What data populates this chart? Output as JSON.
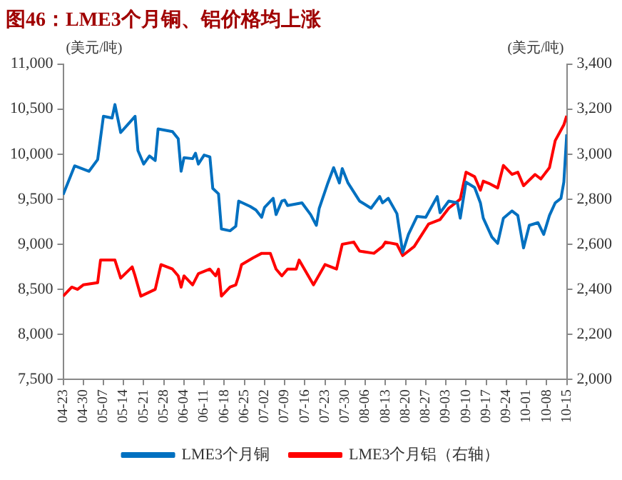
{
  "chart_data": {
    "type": "line",
    "title": "图46：LME3个月铜、铝价格均上涨",
    "ylabel": "(美元/吨)",
    "y2label": "(美元/吨)",
    "xlim": [
      "--04-23",
      "--10-15"
    ],
    "xticks": [
      {
        "value": "--04-23",
        "label": "04-23"
      },
      {
        "value": "--04-30",
        "label": "04-30"
      },
      {
        "value": "--05-07",
        "label": "05-07"
      },
      {
        "value": "--05-14",
        "label": "05-14"
      },
      {
        "value": "--05-21",
        "label": "05-21"
      },
      {
        "value": "--05-28",
        "label": "05-28"
      },
      {
        "value": "--06-04",
        "label": "06-04"
      },
      {
        "value": "--06-11",
        "label": "06-11"
      },
      {
        "value": "--06-18",
        "label": "06-18"
      },
      {
        "value": "--06-25",
        "label": "06-25"
      },
      {
        "value": "--07-02",
        "label": "07-02"
      },
      {
        "value": "--07-09",
        "label": "07-09"
      },
      {
        "value": "--07-16",
        "label": "07-16"
      },
      {
        "value": "--07-23",
        "label": "07-23"
      },
      {
        "value": "--07-30",
        "label": "07-30"
      },
      {
        "value": "--08-06",
        "label": "08-06"
      },
      {
        "value": "--08-13",
        "label": "08-13"
      },
      {
        "value": "--08-20",
        "label": "08-20"
      },
      {
        "value": "--08-27",
        "label": "08-27"
      },
      {
        "value": "--09-03",
        "label": "09-03"
      },
      {
        "value": "--09-10",
        "label": "09-10"
      },
      {
        "value": "--09-17",
        "label": "09-17"
      },
      {
        "value": "--09-24",
        "label": "09-24"
      },
      {
        "value": "--10-01",
        "label": "10-01"
      },
      {
        "value": "--10-08",
        "label": "10-08"
      },
      {
        "value": "--10-15",
        "label": "10-15"
      }
    ],
    "ylim": [
      7500,
      11000
    ],
    "yticks": [
      {
        "value": 7500,
        "label": "7,500"
      },
      {
        "value": 8000,
        "label": "8,000"
      },
      {
        "value": 8500,
        "label": "8,500"
      },
      {
        "value": 9000,
        "label": "9,000"
      },
      {
        "value": 9500,
        "label": "9,500"
      },
      {
        "value": 10000,
        "label": "10,000"
      },
      {
        "value": 10500,
        "label": "10,500"
      },
      {
        "value": 11000,
        "label": "11,000"
      }
    ],
    "y2lim": [
      2000,
      3400
    ],
    "y2ticks": [
      {
        "value": 2000,
        "label": "2,000"
      },
      {
        "value": 2200,
        "label": "2,200"
      },
      {
        "value": 2400,
        "label": "2,400"
      },
      {
        "value": 2600,
        "label": "2,600"
      },
      {
        "value": 2800,
        "label": "2,800"
      },
      {
        "value": 3000,
        "label": "3,000"
      },
      {
        "value": 3200,
        "label": "3,200"
      },
      {
        "value": 3400,
        "label": "3,400"
      }
    ],
    "grid": false,
    "legend": "bottom",
    "marker": "none",
    "line_style": "solid",
    "series": [
      {
        "name": "LME3个月铜",
        "color": "#0070c0",
        "x": [
          "--04-23",
          "--04-27",
          "--05-02",
          "--05-05",
          "--05-07",
          "--05-10",
          "--05-11",
          "--05-13",
          "--05-18",
          "--05-19",
          "--05-21",
          "--05-23",
          "--05-25",
          "--05-26",
          "--05-31",
          "--06-02",
          "--06-03",
          "--06-04",
          "--06-07",
          "--06-08",
          "--06-09",
          "--06-11",
          "--06-13",
          "--06-14",
          "--06-16",
          "--06-17",
          "--06-20",
          "--06-22",
          "--06-23",
          "--06-27",
          "--06-29",
          "--07-01",
          "--07-02",
          "--07-05",
          "--07-06",
          "--07-08",
          "--07-09",
          "--07-10",
          "--07-15",
          "--07-18",
          "--07-20",
          "--07-21",
          "--07-24",
          "--07-26",
          "--07-28",
          "--07-29",
          "--07-31",
          "--08-04",
          "--08-08",
          "--08-11",
          "--08-12",
          "--08-14",
          "--08-17",
          "--08-19",
          "--08-21",
          "--08-24",
          "--08-27",
          "--08-31",
          "--09-01",
          "--09-04",
          "--09-07",
          "--09-08",
          "--09-10",
          "--09-13",
          "--09-15",
          "--09-16",
          "--09-19",
          "--09-21",
          "--09-23",
          "--09-26",
          "--09-28",
          "--09-29",
          "--09-30",
          "--10-02",
          "--10-05",
          "--10-07",
          "--10-09",
          "--10-11",
          "--10-13",
          "--10-14",
          "--10-15"
        ],
        "values": [
          9550,
          9870,
          9810,
          9940,
          10420,
          10400,
          10550,
          10240,
          10420,
          10040,
          9890,
          9980,
          9930,
          10280,
          10250,
          10170,
          9810,
          9960,
          9950,
          10010,
          9890,
          9990,
          9970,
          9620,
          9560,
          9170,
          9150,
          9200,
          9480,
          9420,
          9380,
          9300,
          9410,
          9510,
          9330,
          9480,
          9490,
          9430,
          9460,
          9330,
          9210,
          9400,
          9680,
          9850,
          9680,
          9840,
          9680,
          9480,
          9400,
          9530,
          9460,
          9510,
          9340,
          8910,
          9110,
          9310,
          9300,
          9530,
          9350,
          9480,
          9460,
          9290,
          9690,
          9630,
          9460,
          9290,
          9080,
          9010,
          9290,
          9370,
          9320,
          9140,
          8960,
          9210,
          9240,
          9110,
          9320,
          9460,
          9510,
          9690,
          10220
        ]
      },
      {
        "name": "LME3个月铝（右轴）",
        "color": "#ff0000",
        "axis": "y2",
        "x": [
          "--04-23",
          "--04-26",
          "--04-28",
          "--04-30",
          "--05-05",
          "--05-06",
          "--05-11",
          "--05-13",
          "--05-17",
          "--05-18",
          "--05-20",
          "--05-25",
          "--05-27",
          "--05-31",
          "--06-02",
          "--06-03",
          "--06-04",
          "--06-07",
          "--06-09",
          "--06-13",
          "--06-15",
          "--06-16",
          "--06-17",
          "--06-20",
          "--06-22",
          "--06-23",
          "--06-24",
          "--06-28",
          "--07-01",
          "--07-04",
          "--07-06",
          "--07-08",
          "--07-10",
          "--07-13",
          "--07-14",
          "--07-19",
          "--07-23",
          "--07-27",
          "--07-29",
          "--08-02",
          "--08-04",
          "--08-09",
          "--08-12",
          "--08-13",
          "--08-17",
          "--08-19",
          "--08-23",
          "--08-28",
          "--09-01",
          "--09-04",
          "--09-08",
          "--09-10",
          "--09-13",
          "--09-15",
          "--09-16",
          "--09-18",
          "--09-21",
          "--09-23",
          "--09-26",
          "--09-28",
          "--09-30",
          "--10-04",
          "--10-06",
          "--10-09",
          "--10-11",
          "--10-14",
          "--10-15"
        ],
        "values": [
          2370,
          2410,
          2400,
          2420,
          2430,
          2530,
          2530,
          2450,
          2500,
          2460,
          2370,
          2400,
          2510,
          2490,
          2460,
          2410,
          2460,
          2420,
          2470,
          2490,
          2460,
          2490,
          2370,
          2410,
          2420,
          2460,
          2510,
          2540,
          2560,
          2560,
          2490,
          2460,
          2490,
          2490,
          2530,
          2420,
          2510,
          2490,
          2600,
          2610,
          2570,
          2560,
          2590,
          2610,
          2600,
          2550,
          2590,
          2690,
          2710,
          2760,
          2800,
          2920,
          2900,
          2840,
          2880,
          2870,
          2850,
          2950,
          2910,
          2920,
          2860,
          2910,
          2890,
          2940,
          3060,
          3130,
          3170
        ]
      }
    ]
  }
}
